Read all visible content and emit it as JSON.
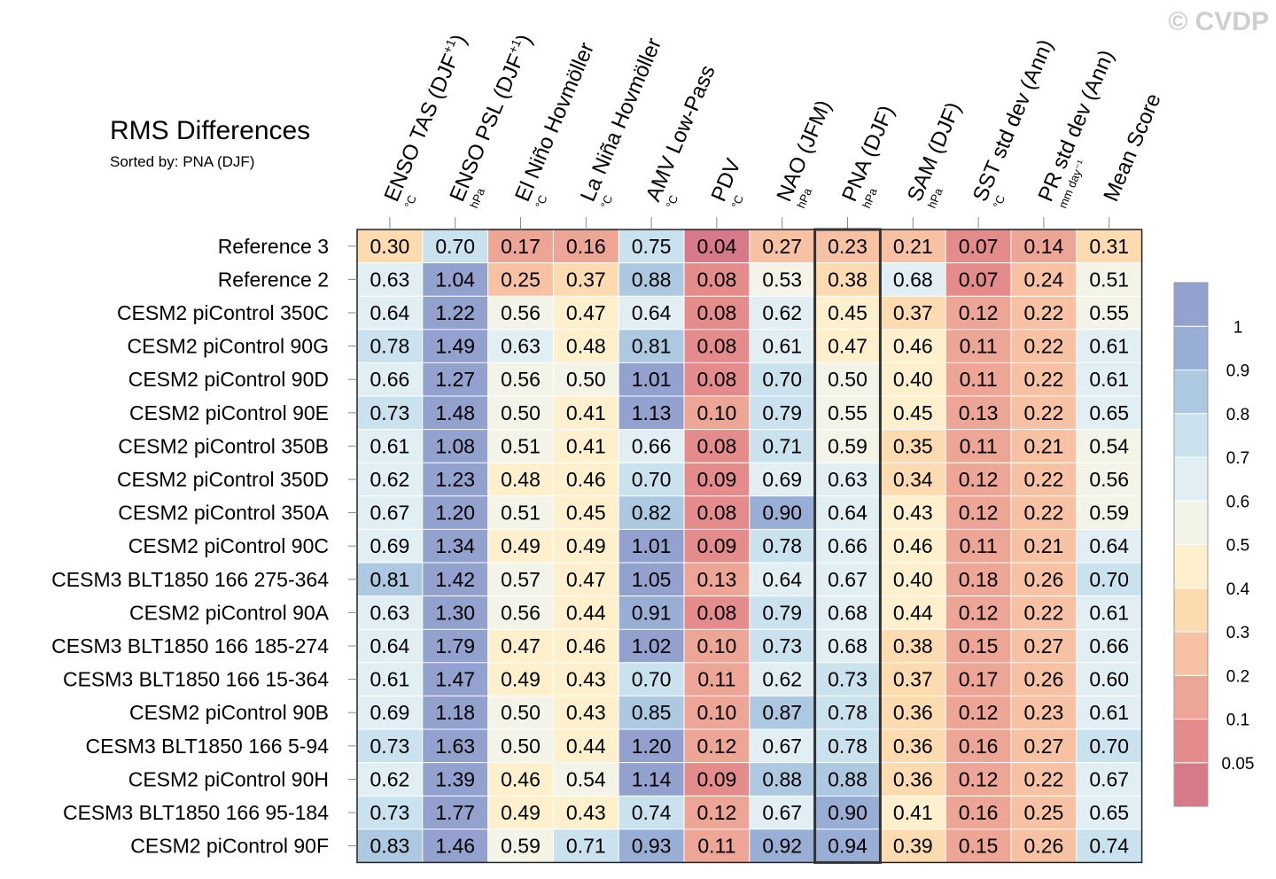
{
  "chart_data": {
    "type": "heatmap",
    "title": "RMS Differences",
    "subtitle": "Sorted by: PNA (DJF)",
    "watermark": "© CVDP",
    "highlight_column": "PNA (DJF)",
    "columns": [
      {
        "label": "ENSO TAS (DJF",
        "sup": "+1",
        "suffix": ")",
        "unit": "°C"
      },
      {
        "label": "ENSO PSL (DJF",
        "sup": "+1",
        "suffix": ")",
        "unit": "hPa"
      },
      {
        "label": "El Niño Hovmöller",
        "sup": "",
        "suffix": "",
        "unit": "°C"
      },
      {
        "label": "La Niña Hovmöller",
        "sup": "",
        "suffix": "",
        "unit": "°C"
      },
      {
        "label": "AMV Low-Pass",
        "sup": "",
        "suffix": "",
        "unit": "°C"
      },
      {
        "label": "PDV",
        "sup": "",
        "suffix": "",
        "unit": "°C"
      },
      {
        "label": "NAO (JFM)",
        "sup": "",
        "suffix": "",
        "unit": "hPa"
      },
      {
        "label": "PNA (DJF)",
        "sup": "",
        "suffix": "",
        "unit": "hPa"
      },
      {
        "label": "SAM (DJF)",
        "sup": "",
        "suffix": "",
        "unit": "hPa"
      },
      {
        "label": "SST std dev (Ann)",
        "sup": "",
        "suffix": "",
        "unit": "°C"
      },
      {
        "label": "PR std dev (Ann)",
        "sup": "",
        "suffix": "",
        "unit": "mm day⁻¹"
      },
      {
        "label": "Mean Score",
        "sup": "",
        "suffix": "",
        "unit": ""
      }
    ],
    "rows": [
      {
        "name": "Reference 3",
        "values": [
          "0.30",
          "0.70",
          "0.17",
          "0.16",
          "0.75",
          "0.04",
          "0.27",
          "0.23",
          "0.21",
          "0.07",
          "0.14",
          "0.31"
        ]
      },
      {
        "name": "Reference 2",
        "values": [
          "0.63",
          "1.04",
          "0.25",
          "0.37",
          "0.88",
          "0.08",
          "0.53",
          "0.38",
          "0.68",
          "0.07",
          "0.24",
          "0.51"
        ]
      },
      {
        "name": "CESM2 piControl 350C",
        "values": [
          "0.64",
          "1.22",
          "0.56",
          "0.47",
          "0.64",
          "0.08",
          "0.62",
          "0.45",
          "0.37",
          "0.12",
          "0.22",
          "0.55"
        ]
      },
      {
        "name": "CESM2 piControl 90G",
        "values": [
          "0.78",
          "1.49",
          "0.63",
          "0.48",
          "0.81",
          "0.08",
          "0.61",
          "0.47",
          "0.46",
          "0.11",
          "0.22",
          "0.61"
        ]
      },
      {
        "name": "CESM2 piControl 90D",
        "values": [
          "0.66",
          "1.27",
          "0.56",
          "0.50",
          "1.01",
          "0.08",
          "0.70",
          "0.50",
          "0.40",
          "0.11",
          "0.22",
          "0.61"
        ]
      },
      {
        "name": "CESM2 piControl 90E",
        "values": [
          "0.73",
          "1.48",
          "0.50",
          "0.41",
          "1.13",
          "0.10",
          "0.79",
          "0.55",
          "0.45",
          "0.13",
          "0.22",
          "0.65"
        ]
      },
      {
        "name": "CESM2 piControl 350B",
        "values": [
          "0.61",
          "1.08",
          "0.51",
          "0.41",
          "0.66",
          "0.08",
          "0.71",
          "0.59",
          "0.35",
          "0.11",
          "0.21",
          "0.54"
        ]
      },
      {
        "name": "CESM2 piControl 350D",
        "values": [
          "0.62",
          "1.23",
          "0.48",
          "0.46",
          "0.70",
          "0.09",
          "0.69",
          "0.63",
          "0.34",
          "0.12",
          "0.22",
          "0.56"
        ]
      },
      {
        "name": "CESM2 piControl 350A",
        "values": [
          "0.67",
          "1.20",
          "0.51",
          "0.45",
          "0.82",
          "0.08",
          "0.90",
          "0.64",
          "0.43",
          "0.12",
          "0.22",
          "0.59"
        ]
      },
      {
        "name": "CESM2 piControl 90C",
        "values": [
          "0.69",
          "1.34",
          "0.49",
          "0.49",
          "1.01",
          "0.09",
          "0.78",
          "0.66",
          "0.46",
          "0.11",
          "0.21",
          "0.64"
        ]
      },
      {
        "name": "CESM3 BLT1850 166 275-364",
        "values": [
          "0.81",
          "1.42",
          "0.57",
          "0.47",
          "1.05",
          "0.13",
          "0.64",
          "0.67",
          "0.40",
          "0.18",
          "0.26",
          "0.70"
        ]
      },
      {
        "name": "CESM2 piControl 90A",
        "values": [
          "0.63",
          "1.30",
          "0.56",
          "0.44",
          "0.91",
          "0.08",
          "0.79",
          "0.68",
          "0.44",
          "0.12",
          "0.22",
          "0.61"
        ]
      },
      {
        "name": "CESM3 BLT1850 166 185-274",
        "values": [
          "0.64",
          "1.79",
          "0.47",
          "0.46",
          "1.02",
          "0.10",
          "0.73",
          "0.68",
          "0.38",
          "0.15",
          "0.27",
          "0.66"
        ]
      },
      {
        "name": "CESM3 BLT1850 166 15-364",
        "values": [
          "0.61",
          "1.47",
          "0.49",
          "0.43",
          "0.70",
          "0.11",
          "0.62",
          "0.73",
          "0.37",
          "0.17",
          "0.26",
          "0.60"
        ]
      },
      {
        "name": "CESM2 piControl 90B",
        "values": [
          "0.69",
          "1.18",
          "0.50",
          "0.43",
          "0.85",
          "0.10",
          "0.87",
          "0.78",
          "0.36",
          "0.12",
          "0.23",
          "0.61"
        ]
      },
      {
        "name": "CESM3 BLT1850 166 5-94",
        "values": [
          "0.73",
          "1.63",
          "0.50",
          "0.44",
          "1.20",
          "0.12",
          "0.67",
          "0.78",
          "0.36",
          "0.16",
          "0.27",
          "0.70"
        ]
      },
      {
        "name": "CESM2 piControl 90H",
        "values": [
          "0.62",
          "1.39",
          "0.46",
          "0.54",
          "1.14",
          "0.09",
          "0.88",
          "0.88",
          "0.36",
          "0.12",
          "0.22",
          "0.67"
        ]
      },
      {
        "name": "CESM3 BLT1850 166 95-184",
        "values": [
          "0.73",
          "1.77",
          "0.49",
          "0.43",
          "0.74",
          "0.12",
          "0.67",
          "0.90",
          "0.41",
          "0.16",
          "0.25",
          "0.65"
        ]
      },
      {
        "name": "CESM2 piControl 90F",
        "values": [
          "0.83",
          "1.46",
          "0.59",
          "0.71",
          "0.93",
          "0.11",
          "0.92",
          "0.94",
          "0.39",
          "0.15",
          "0.26",
          "0.74"
        ]
      }
    ],
    "colorbar": {
      "levels": [
        0.05,
        0.1,
        0.2,
        0.3,
        0.4,
        0.5,
        0.6,
        0.7,
        0.8,
        0.9,
        1
      ],
      "labels": [
        "0.05",
        "0.1",
        "0.2",
        "0.3",
        "0.4",
        "0.5",
        "0.6",
        "0.7",
        "0.8",
        "0.9",
        "1"
      ],
      "colors": [
        "#d67a8a",
        "#e48c8c",
        "#eda596",
        "#f6c2a3",
        "#fcdbb0",
        "#fef0cc",
        "#f3f3e8",
        "#e1eff5",
        "#c9e2ee",
        "#acc9e1",
        "#98aed4",
        "#92a1cd"
      ]
    }
  }
}
